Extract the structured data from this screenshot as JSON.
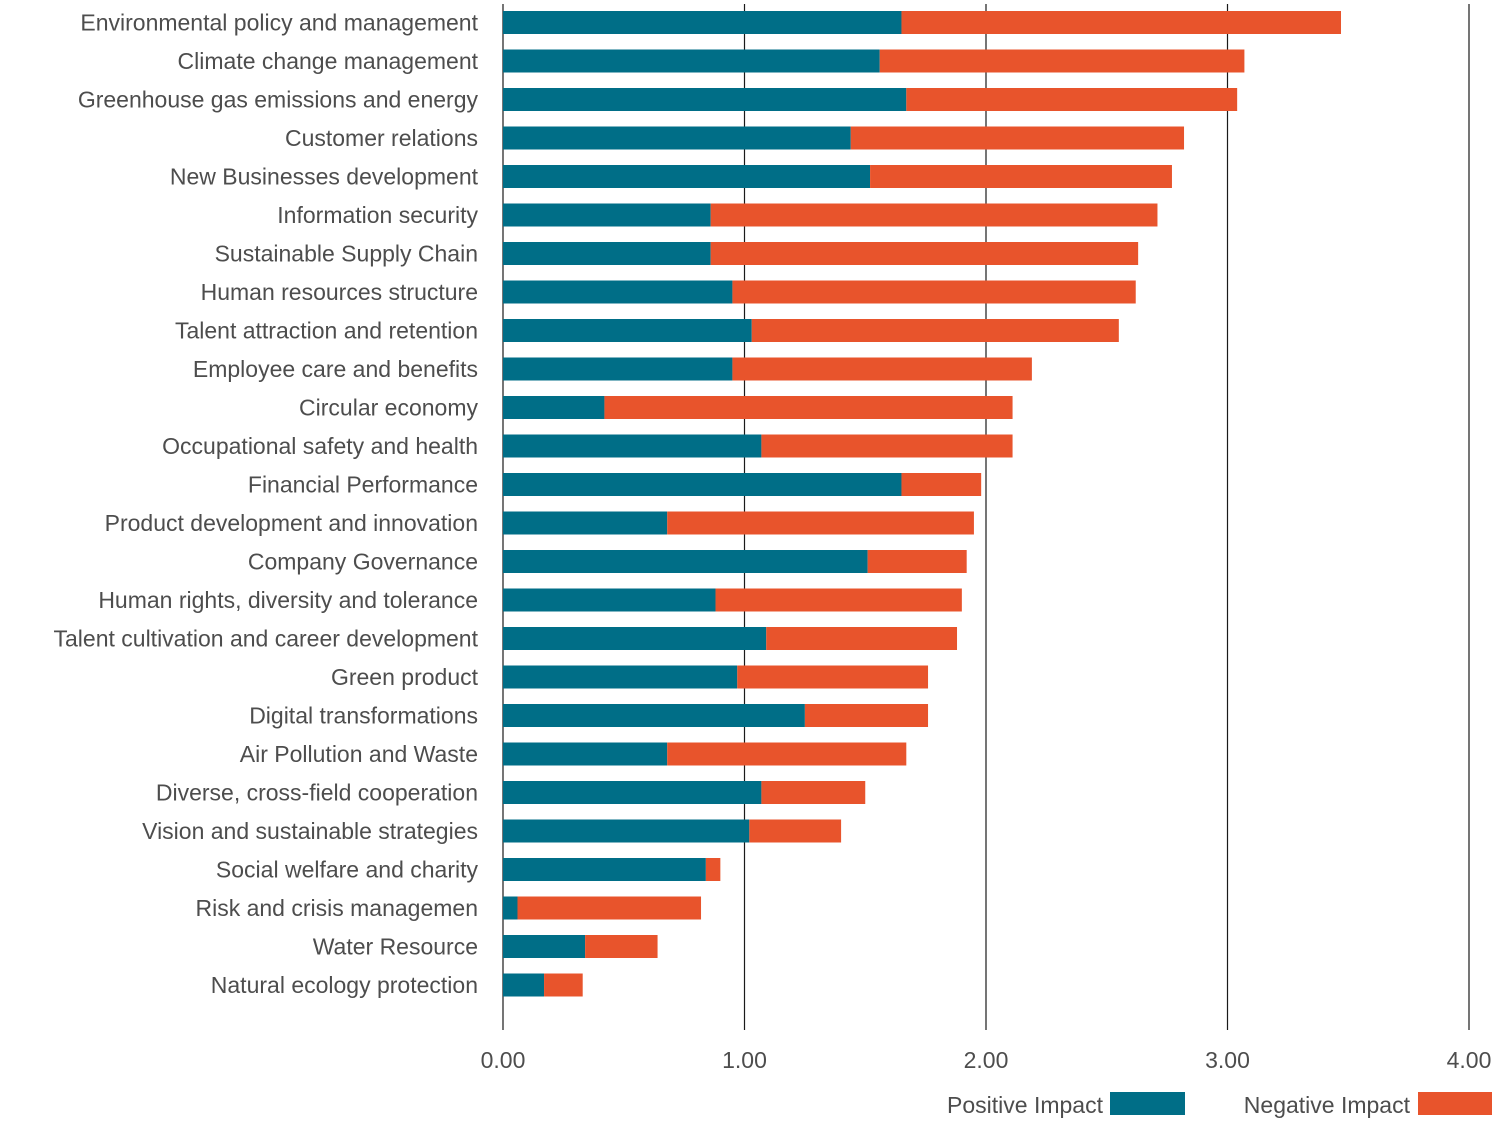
{
  "chart_data": {
    "type": "bar",
    "orientation": "horizontal",
    "stacked": true,
    "categories": [
      "Environmental policy and management",
      "Climate change management",
      "Greenhouse gas emissions and energy",
      "Customer relations",
      "New Businesses development",
      "Information security",
      "Sustainable Supply Chain",
      "Human resources structure",
      "Talent attraction and retention",
      "Employee care and benefits",
      "Circular economy",
      "Occupational safety and health",
      "Financial Performance",
      "Product development and innovation",
      "Company Governance",
      "Human rights, diversity and tolerance",
      "Talent cultivation and career development",
      "Green product",
      "Digital transformations",
      "Air Pollution and Waste",
      "Diverse, cross-field cooperation",
      "Vision and sustainable strategies",
      "Social welfare and charity",
      "Risk and crisis managemen",
      "Water Resource",
      "Natural ecology protection"
    ],
    "series": [
      {
        "name": "Positive Impact",
        "color": "#006e87",
        "values": [
          1.65,
          1.56,
          1.67,
          1.44,
          1.52,
          0.86,
          0.86,
          0.95,
          1.03,
          0.95,
          0.42,
          1.07,
          1.65,
          0.68,
          1.51,
          0.88,
          1.09,
          0.97,
          1.25,
          0.68,
          1.07,
          1.02,
          0.84,
          0.06,
          0.34,
          0.17
        ]
      },
      {
        "name": "Negative Impact",
        "color": "#e8542c",
        "values": [
          1.82,
          1.51,
          1.37,
          1.38,
          1.25,
          1.85,
          1.77,
          1.67,
          1.52,
          1.24,
          1.69,
          1.04,
          0.33,
          1.27,
          0.41,
          1.02,
          0.79,
          0.79,
          0.51,
          0.99,
          0.43,
          0.38,
          0.06,
          0.76,
          0.3,
          0.16
        ]
      }
    ],
    "xlim": [
      0,
      4
    ],
    "xticks": [
      "0.00",
      "1.00",
      "2.00",
      "3.00",
      "4.00"
    ],
    "xtick_values": [
      0,
      1,
      2,
      3,
      4
    ],
    "grid": "vertical",
    "legend": "bottom-right"
  }
}
